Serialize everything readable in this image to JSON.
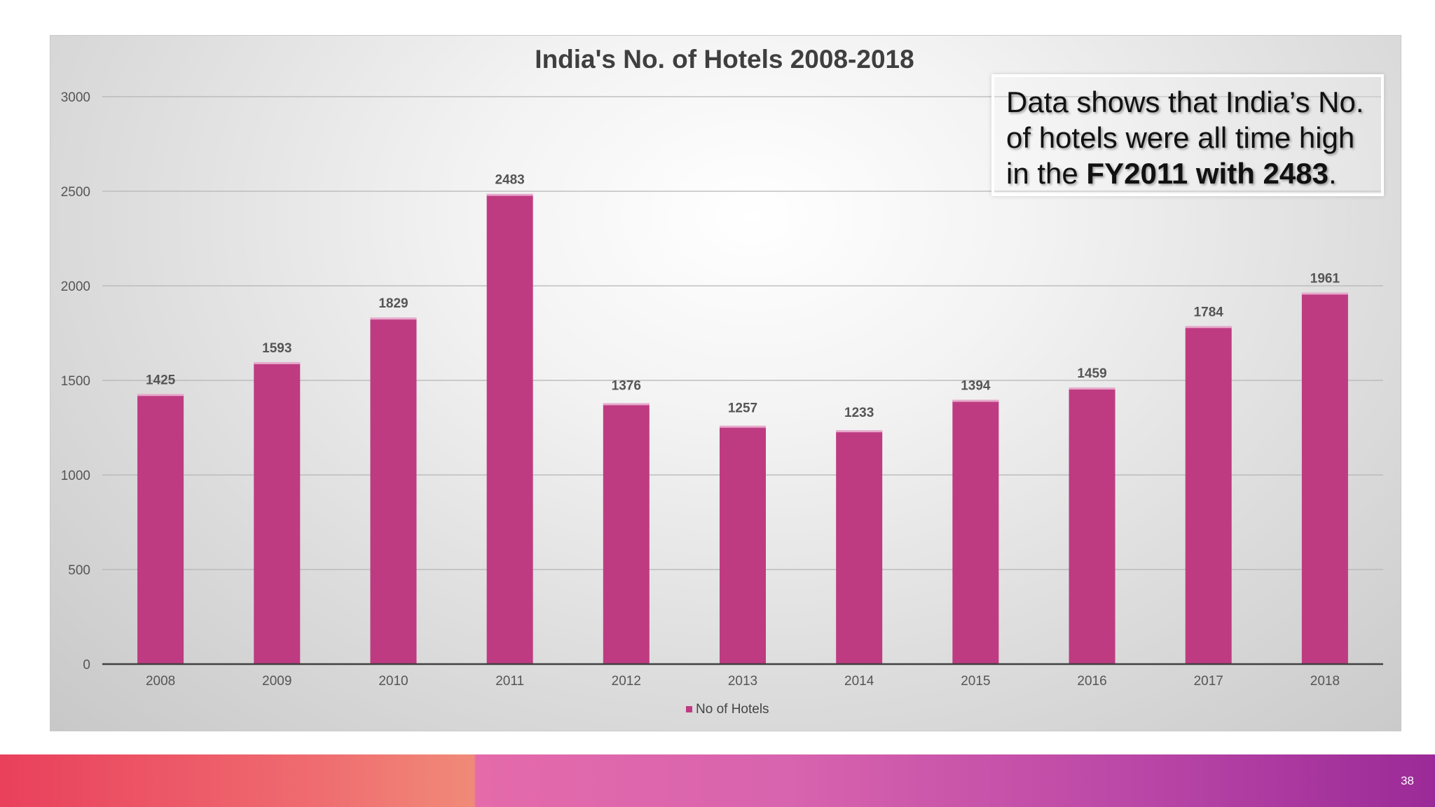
{
  "slide": {
    "page_number": "38"
  },
  "callout": {
    "line1": "Data shows that India’s No.",
    "line2": "of hotels were all time high",
    "line3_prefix": "in the ",
    "line3_bold": "FY2011 with 2483",
    "line3_suffix": "."
  },
  "chart_data": {
    "type": "bar",
    "title": "India's No. of Hotels 2008-2018",
    "xlabel": "",
    "ylabel": "",
    "categories": [
      "2008",
      "2009",
      "2010",
      "2011",
      "2012",
      "2013",
      "2014",
      "2015",
      "2016",
      "2017",
      "2018"
    ],
    "series": [
      {
        "name": "No of Hotels",
        "values": [
          1425,
          1593,
          1829,
          2483,
          1376,
          1257,
          1233,
          1394,
          1459,
          1784,
          1961
        ],
        "color": "#be3b82"
      }
    ],
    "ylim": [
      0,
      3000
    ],
    "yticks": [
      "0",
      "500",
      "1000",
      "1500",
      "2000",
      "2500",
      "3000"
    ],
    "ytick_values": [
      0,
      500,
      1000,
      1500,
      2000,
      2500,
      3000
    ],
    "grid": true,
    "legend_position": "bottom",
    "data_labels": true
  }
}
